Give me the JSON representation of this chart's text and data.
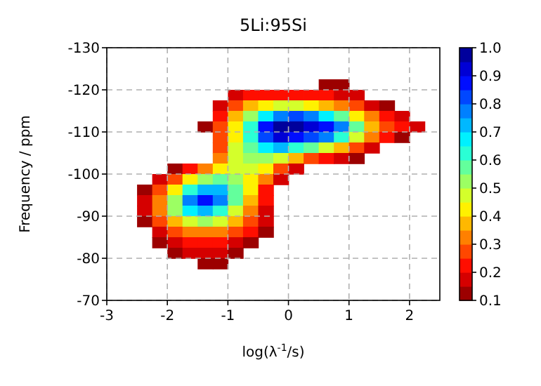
{
  "chart_data": {
    "type": "heatmap",
    "title": "5Li:95Si",
    "xlabel": "log(λ$^{-1}$/s)",
    "ylabel": "Frequency / ppm",
    "x": [
      -2.375,
      -2.125,
      -1.875,
      -1.625,
      -1.375,
      -1.125,
      -0.875,
      -0.625,
      -0.375,
      -0.125,
      0.125,
      0.375,
      0.625,
      0.875,
      1.125,
      1.375,
      1.625,
      1.875,
      2.125
    ],
    "y": [
      -121.25,
      -118.75,
      -116.25,
      -113.75,
      -111.25,
      -108.75,
      -106.25,
      -103.75,
      -101.25,
      -98.75,
      -96.25,
      -93.75,
      -91.25,
      -88.75,
      -86.25,
      -83.75,
      -81.25,
      -78.75
    ],
    "xlim": [
      -3,
      2.5
    ],
    "xticks": [
      -3,
      -2,
      -1,
      0,
      1,
      2
    ],
    "ylim": [
      -70,
      -130
    ],
    "yticks": [
      -130,
      -120,
      -110,
      -100,
      -90,
      -80,
      -70
    ],
    "clim": [
      0.1,
      1.0
    ],
    "cticks": [
      0.1,
      0.2,
      0.3,
      0.4,
      0.5,
      0.6,
      0.7,
      0.8,
      0.9,
      {
        "value": 1.0,
        "label": "1.0"
      }
    ],
    "grid": true,
    "cells": [
      [
        null,
        null,
        null,
        null,
        null,
        null,
        null,
        null,
        null,
        null,
        null,
        null,
        0.1,
        0.1,
        null,
        null,
        null,
        null,
        null
      ],
      [
        null,
        null,
        null,
        null,
        null,
        null,
        0.15,
        0.2,
        0.2,
        0.2,
        0.2,
        0.2,
        0.2,
        0.15,
        0.15,
        null,
        null,
        null,
        null
      ],
      [
        null,
        null,
        null,
        null,
        null,
        0.15,
        0.25,
        0.35,
        0.4,
        0.45,
        0.45,
        0.4,
        0.35,
        0.3,
        0.25,
        0.15,
        0.1,
        null,
        null
      ],
      [
        null,
        null,
        null,
        null,
        null,
        0.2,
        0.35,
        0.5,
        0.65,
        0.75,
        0.8,
        0.75,
        0.65,
        0.55,
        0.4,
        0.3,
        0.2,
        0.15,
        null
      ],
      [
        null,
        null,
        null,
        null,
        0.1,
        0.25,
        0.4,
        0.6,
        0.85,
        1.0,
        0.95,
        0.9,
        0.85,
        0.75,
        0.55,
        0.35,
        0.25,
        0.2,
        0.15
      ],
      [
        null,
        null,
        null,
        null,
        null,
        0.25,
        0.4,
        0.6,
        0.8,
        0.9,
        0.85,
        0.8,
        0.75,
        0.6,
        0.45,
        0.3,
        0.2,
        0.1,
        null
      ],
      [
        null,
        null,
        null,
        null,
        null,
        0.25,
        0.45,
        0.55,
        0.65,
        0.7,
        0.6,
        0.55,
        0.45,
        0.35,
        0.25,
        0.15,
        null,
        null,
        null
      ],
      [
        null,
        null,
        null,
        null,
        null,
        0.3,
        0.45,
        0.5,
        0.5,
        0.45,
        0.35,
        0.25,
        0.2,
        0.15,
        0.1,
        null,
        null,
        null,
        null
      ],
      [
        null,
        null,
        0.1,
        0.2,
        0.3,
        0.4,
        0.45,
        0.45,
        0.4,
        0.25,
        0.15,
        null,
        null,
        null,
        null,
        null,
        null,
        null,
        null
      ],
      [
        null,
        0.15,
        0.25,
        0.4,
        0.5,
        0.55,
        0.5,
        0.4,
        0.3,
        0.15,
        null,
        null,
        null,
        null,
        null,
        null,
        null,
        null,
        null
      ],
      [
        0.1,
        0.25,
        0.4,
        0.6,
        0.7,
        0.7,
        0.55,
        0.4,
        0.2,
        null,
        null,
        null,
        null,
        null,
        null,
        null,
        null,
        null,
        null
      ],
      [
        0.15,
        0.3,
        0.5,
        0.75,
        0.85,
        0.75,
        0.55,
        0.35,
        0.2,
        null,
        null,
        null,
        null,
        null,
        null,
        null,
        null,
        null,
        null
      ],
      [
        0.15,
        0.3,
        0.5,
        0.65,
        0.7,
        0.6,
        0.45,
        0.3,
        0.15,
        null,
        null,
        null,
        null,
        null,
        null,
        null,
        null,
        null,
        null
      ],
      [
        0.1,
        0.25,
        0.35,
        0.45,
        0.5,
        0.45,
        0.35,
        0.25,
        0.15,
        null,
        null,
        null,
        null,
        null,
        null,
        null,
        null,
        null,
        null
      ],
      [
        null,
        0.15,
        0.25,
        0.3,
        0.3,
        0.3,
        0.25,
        0.2,
        0.1,
        null,
        null,
        null,
        null,
        null,
        null,
        null,
        null,
        null,
        null
      ],
      [
        null,
        0.1,
        0.15,
        0.2,
        0.2,
        0.2,
        0.15,
        0.1,
        null,
        null,
        null,
        null,
        null,
        null,
        null,
        null,
        null,
        null,
        null
      ],
      [
        null,
        null,
        0.1,
        0.15,
        0.15,
        0.15,
        0.1,
        null,
        null,
        null,
        null,
        null,
        null,
        null,
        null,
        null,
        null,
        null,
        null
      ],
      [
        null,
        null,
        null,
        null,
        0.1,
        0.1,
        null,
        null,
        null,
        null,
        null,
        null,
        null,
        null,
        null,
        null,
        null,
        null,
        null
      ]
    ]
  }
}
